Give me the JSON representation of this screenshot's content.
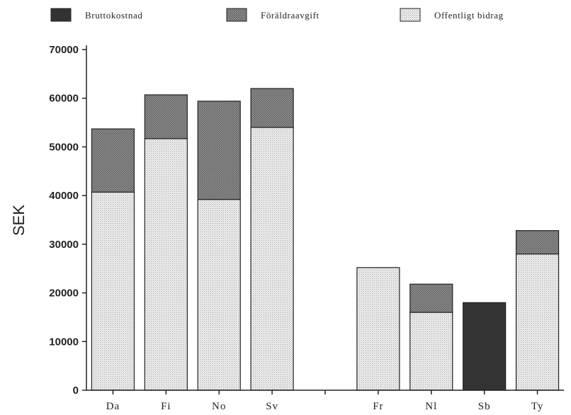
{
  "chart_data": {
    "type": "bar",
    "stacked": true,
    "ylabel": "SEK",
    "ylim": [
      0,
      70000
    ],
    "yticks": [
      0,
      10000,
      20000,
      30000,
      40000,
      50000,
      60000,
      70000
    ],
    "categories": [
      "Da",
      "Fi",
      "No",
      "Sv",
      "",
      "Fr",
      "Nl",
      "Sb",
      "Ty"
    ],
    "series": [
      {
        "name": "Bruttokostnad",
        "key": "brutto",
        "color": "#3a3a3a",
        "values": [
          0,
          0,
          0,
          0,
          null,
          0,
          0,
          18000,
          0
        ]
      },
      {
        "name": "Offentligt bidrag",
        "key": "offentligt",
        "color": "#dcdcdc",
        "values": [
          40700,
          51700,
          39200,
          54000,
          null,
          25200,
          16000,
          0,
          28000
        ]
      },
      {
        "name": "Föräldraavgift",
        "key": "foraldra",
        "color": "#8a8a8a",
        "values": [
          13000,
          9000,
          20200,
          8000,
          null,
          0,
          5800,
          0,
          4800
        ]
      }
    ],
    "legend": {
      "position": "top",
      "order": [
        "Bruttokostnad",
        "Föräldraavgift",
        "Offentligt bidrag"
      ]
    },
    "grid": false
  }
}
